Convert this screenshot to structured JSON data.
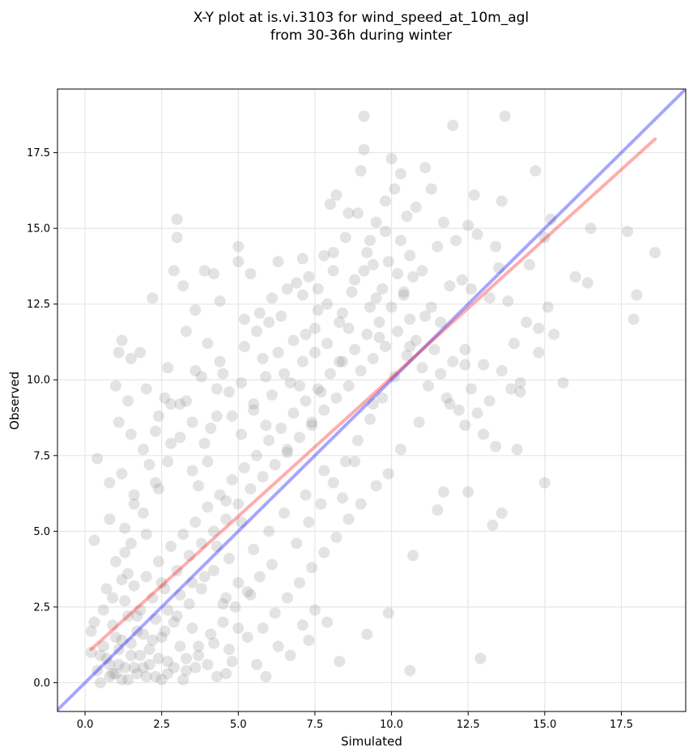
{
  "chart_data": {
    "type": "scatter",
    "title_line1": "X-Y plot at is.vi.3103 for wind_speed_at_10m_agl",
    "title_line2": "from 30-36h during winter",
    "xlabel": "Simulated",
    "ylabel": "Observed",
    "xlim": [
      -0.9,
      19.6
    ],
    "ylim": [
      -0.95,
      19.6
    ],
    "xticks": [
      0.0,
      2.5,
      5.0,
      7.5,
      10.0,
      12.5,
      15.0,
      17.5
    ],
    "yticks": [
      0.0,
      2.5,
      5.0,
      7.5,
      10.0,
      12.5,
      15.0,
      17.5
    ],
    "xtick_labels": [
      "0.0",
      "2.5",
      "5.0",
      "7.5",
      "10.0",
      "12.5",
      "15.0",
      "17.5"
    ],
    "ytick_labels": [
      "0.0",
      "2.5",
      "5.0",
      "7.5",
      "10.0",
      "12.5",
      "15.0",
      "17.5"
    ],
    "grid": true,
    "point_color": "#808080",
    "identity_line": {
      "color": "#0000ff",
      "x": [
        -0.9,
        19.6
      ],
      "y": [
        -0.9,
        19.6
      ]
    },
    "fit_line": {
      "color": "#ff0000",
      "x": [
        0.2,
        18.6
      ],
      "y": [
        1.1,
        17.95
      ]
    },
    "points": [
      [
        0.4,
        7.4
      ],
      [
        0.3,
        4.7
      ],
      [
        0.2,
        1.7
      ],
      [
        0.5,
        0.9
      ],
      [
        0.6,
        2.4
      ],
      [
        0.7,
        3.1
      ],
      [
        0.8,
        5.4
      ],
      [
        0.8,
        6.6
      ],
      [
        0.9,
        2.8
      ],
      [
        1.0,
        0.3
      ],
      [
        1.0,
        9.8
      ],
      [
        1.1,
        8.6
      ],
      [
        1.1,
        10.9
      ],
      [
        1.2,
        11.3
      ],
      [
        1.2,
        6.9
      ],
      [
        1.3,
        4.3
      ],
      [
        1.4,
        3.6
      ],
      [
        1.4,
        9.3
      ],
      [
        1.5,
        10.7
      ],
      [
        1.5,
        8.2
      ],
      [
        1.6,
        5.9
      ],
      [
        1.7,
        2.2
      ],
      [
        1.8,
        10.9
      ],
      [
        1.9,
        7.7
      ],
      [
        2.0,
        9.7
      ],
      [
        2.0,
        4.9
      ],
      [
        2.2,
        12.7
      ],
      [
        2.3,
        8.3
      ],
      [
        2.4,
        6.4
      ],
      [
        2.5,
        3.3
      ],
      [
        2.6,
        9.4
      ],
      [
        2.7,
        10.4
      ],
      [
        2.8,
        7.9
      ],
      [
        2.9,
        13.6
      ],
      [
        3.0,
        15.3
      ],
      [
        3.0,
        14.7
      ],
      [
        3.1,
        9.2
      ],
      [
        3.2,
        13.1
      ],
      [
        3.3,
        11.6
      ],
      [
        3.5,
        8.6
      ],
      [
        3.6,
        12.3
      ],
      [
        3.7,
        6.5
      ],
      [
        3.8,
        10.1
      ],
      [
        3.9,
        13.6
      ],
      [
        4.0,
        7.3
      ],
      [
        4.1,
        8.4
      ],
      [
        4.2,
        13.5
      ],
      [
        4.3,
        9.7
      ],
      [
        4.4,
        12.6
      ],
      [
        4.5,
        10.2
      ],
      [
        4.6,
        6.0
      ],
      [
        4.8,
        8.8
      ],
      [
        5.0,
        14.4
      ],
      [
        5.0,
        13.9
      ],
      [
        5.1,
        9.9
      ],
      [
        5.2,
        11.1
      ],
      [
        5.4,
        13.5
      ],
      [
        5.5,
        9.2
      ],
      [
        5.7,
        12.2
      ],
      [
        5.8,
        10.7
      ],
      [
        5.9,
        8.5
      ],
      [
        6.0,
        11.9
      ],
      [
        6.1,
        9.5
      ],
      [
        6.3,
        13.9
      ],
      [
        6.4,
        12.1
      ],
      [
        6.5,
        10.2
      ],
      [
        6.6,
        7.7
      ],
      [
        6.8,
        11.3
      ],
      [
        6.9,
        13.2
      ],
      [
        7.0,
        9.8
      ],
      [
        7.1,
        12.8
      ],
      [
        7.2,
        11.5
      ],
      [
        7.3,
        13.4
      ],
      [
        7.4,
        8.6
      ],
      [
        7.5,
        10.9
      ],
      [
        7.6,
        12.3
      ],
      [
        7.7,
        9.6
      ],
      [
        7.8,
        14.1
      ],
      [
        7.9,
        11.2
      ],
      [
        8.0,
        15.8
      ],
      [
        8.1,
        13.6
      ],
      [
        8.2,
        16.1
      ],
      [
        8.3,
        10.6
      ],
      [
        8.4,
        12.2
      ],
      [
        8.5,
        14.7
      ],
      [
        8.6,
        11.7
      ],
      [
        8.8,
        13.3
      ],
      [
        8.9,
        15.5
      ],
      [
        9.0,
        16.9
      ],
      [
        9.1,
        18.7
      ],
      [
        9.1,
        17.6
      ],
      [
        9.2,
        14.2
      ],
      [
        9.3,
        12.4
      ],
      [
        9.4,
        13.8
      ],
      [
        9.5,
        15.2
      ],
      [
        9.6,
        11.4
      ],
      [
        9.7,
        13.0
      ],
      [
        9.8,
        14.9
      ],
      [
        10.0,
        17.3
      ],
      [
        10.1,
        16.3
      ],
      [
        10.2,
        13.5
      ],
      [
        10.3,
        16.8
      ],
      [
        10.4,
        12.9
      ],
      [
        10.5,
        15.4
      ],
      [
        10.6,
        14.1
      ],
      [
        10.8,
        15.7
      ],
      [
        11.0,
        13.6
      ],
      [
        11.1,
        17.0
      ],
      [
        11.3,
        12.4
      ],
      [
        11.5,
        14.4
      ],
      [
        11.7,
        15.2
      ],
      [
        11.9,
        13.1
      ],
      [
        12.0,
        18.4
      ],
      [
        12.1,
        14.6
      ],
      [
        12.4,
        11.0
      ],
      [
        12.5,
        15.1
      ],
      [
        12.6,
        13.0
      ],
      [
        12.8,
        14.8
      ],
      [
        13.0,
        10.5
      ],
      [
        13.2,
        12.7
      ],
      [
        13.5,
        13.7
      ],
      [
        13.6,
        15.9
      ],
      [
        13.7,
        18.7
      ],
      [
        13.8,
        12.6
      ],
      [
        14.0,
        11.2
      ],
      [
        14.2,
        9.6
      ],
      [
        14.5,
        13.8
      ],
      [
        14.7,
        16.9
      ],
      [
        14.8,
        10.9
      ],
      [
        15.0,
        14.7
      ],
      [
        15.1,
        12.4
      ],
      [
        15.2,
        15.3
      ],
      [
        15.3,
        11.5
      ],
      [
        15.6,
        9.9
      ],
      [
        16.0,
        13.4
      ],
      [
        16.4,
        13.2
      ],
      [
        16.5,
        15.0
      ],
      [
        17.7,
        14.9
      ],
      [
        17.9,
        12.0
      ],
      [
        18.0,
        12.8
      ],
      [
        18.6,
        14.2
      ],
      [
        14.1,
        7.7
      ],
      [
        13.6,
        5.6
      ],
      [
        13.3,
        5.2
      ],
      [
        12.9,
        0.8
      ],
      [
        12.5,
        6.3
      ],
      [
        11.7,
        6.3
      ],
      [
        11.5,
        5.7
      ],
      [
        10.7,
        4.2
      ],
      [
        10.6,
        0.4
      ],
      [
        9.9,
        2.3
      ],
      [
        9.2,
        1.6
      ],
      [
        8.3,
        0.7
      ],
      [
        7.9,
        2.0
      ],
      [
        7.5,
        2.4
      ],
      [
        7.3,
        1.4
      ],
      [
        7.1,
        1.9
      ],
      [
        6.7,
        0.9
      ],
      [
        6.3,
        1.2
      ],
      [
        5.9,
        0.2
      ],
      [
        5.6,
        0.6
      ],
      [
        5.3,
        1.5
      ],
      [
        5.0,
        1.8
      ],
      [
        4.7,
        1.1
      ],
      [
        4.5,
        2.6
      ],
      [
        4.6,
        0.3
      ],
      [
        4.2,
        1.3
      ],
      [
        4.0,
        0.6
      ],
      [
        3.7,
        0.9
      ],
      [
        3.5,
        1.8
      ],
      [
        3.3,
        0.4
      ],
      [
        3.1,
        1.2
      ],
      [
        2.9,
        2.0
      ],
      [
        2.7,
        0.7
      ],
      [
        2.5,
        1.5
      ],
      [
        2.3,
        0.2
      ],
      [
        2.1,
        1.1
      ],
      [
        1.9,
        0.5
      ],
      [
        1.7,
        1.7
      ],
      [
        1.5,
        0.9
      ],
      [
        1.4,
        0.1
      ],
      [
        1.2,
        1.4
      ],
      [
        1.1,
        0.6
      ],
      [
        0.9,
        1.9
      ],
      [
        0.8,
        0.2
      ],
      [
        0.6,
        1.2
      ],
      [
        0.4,
        0.4
      ],
      [
        0.3,
        2.0
      ],
      [
        0.2,
        1.0
      ],
      [
        1.3,
        2.7
      ],
      [
        1.6,
        3.2
      ],
      [
        1.8,
        2.4
      ],
      [
        2.0,
        3.5
      ],
      [
        2.2,
        2.8
      ],
      [
        2.4,
        4.0
      ],
      [
        2.6,
        3.1
      ],
      [
        2.8,
        4.5
      ],
      [
        3.0,
        3.7
      ],
      [
        3.2,
        4.9
      ],
      [
        3.4,
        4.2
      ],
      [
        3.6,
        5.3
      ],
      [
        3.8,
        4.6
      ],
      [
        4.0,
        5.8
      ],
      [
        4.2,
        5.0
      ],
      [
        4.4,
        6.2
      ],
      [
        4.6,
        5.4
      ],
      [
        4.8,
        6.7
      ],
      [
        5.0,
        5.9
      ],
      [
        5.2,
        7.1
      ],
      [
        5.4,
        6.4
      ],
      [
        5.6,
        7.5
      ],
      [
        5.8,
        6.8
      ],
      [
        6.0,
        8.0
      ],
      [
        6.2,
        7.2
      ],
      [
        6.4,
        8.4
      ],
      [
        6.6,
        7.6
      ],
      [
        6.8,
        8.9
      ],
      [
        7.0,
        8.1
      ],
      [
        7.2,
        9.3
      ],
      [
        7.4,
        8.5
      ],
      [
        7.6,
        9.7
      ],
      [
        7.8,
        9.0
      ],
      [
        8.0,
        10.2
      ],
      [
        8.2,
        9.4
      ],
      [
        8.4,
        10.6
      ],
      [
        8.6,
        9.8
      ],
      [
        8.8,
        11.0
      ],
      [
        9.0,
        10.3
      ],
      [
        9.2,
        11.5
      ],
      [
        9.4,
        10.7
      ],
      [
        9.6,
        11.9
      ],
      [
        9.8,
        11.1
      ],
      [
        10.0,
        12.4
      ],
      [
        10.2,
        11.6
      ],
      [
        10.4,
        12.8
      ],
      [
        10.6,
        12.0
      ],
      [
        10.8,
        11.3
      ],
      [
        11.0,
        10.4
      ],
      [
        11.2,
        9.8
      ],
      [
        11.4,
        11.0
      ],
      [
        11.6,
        10.2
      ],
      [
        11.8,
        9.4
      ],
      [
        12.0,
        10.6
      ],
      [
        12.2,
        9.0
      ],
      [
        12.4,
        8.5
      ],
      [
        12.6,
        9.7
      ],
      [
        12.8,
        8.9
      ],
      [
        13.0,
        8.2
      ],
      [
        13.2,
        9.3
      ],
      [
        13.4,
        7.8
      ],
      [
        13.6,
        10.3
      ],
      [
        13.9,
        9.7
      ],
      [
        14.2,
        9.9
      ],
      [
        14.4,
        11.9
      ],
      [
        14.8,
        11.7
      ],
      [
        15.0,
        6.6
      ],
      [
        12.4,
        10.5
      ],
      [
        11.9,
        9.2
      ],
      [
        10.9,
        8.6
      ],
      [
        10.3,
        7.7
      ],
      [
        9.9,
        6.9
      ],
      [
        9.5,
        6.5
      ],
      [
        9.0,
        5.9
      ],
      [
        8.6,
        5.4
      ],
      [
        8.2,
        4.8
      ],
      [
        7.8,
        4.3
      ],
      [
        7.4,
        3.8
      ],
      [
        7.0,
        3.3
      ],
      [
        6.6,
        2.8
      ],
      [
        6.2,
        2.3
      ],
      [
        5.8,
        1.8
      ],
      [
        5.4,
        2.9
      ],
      [
        5.0,
        3.3
      ],
      [
        4.6,
        2.8
      ],
      [
        4.2,
        3.7
      ],
      [
        3.8,
        3.1
      ],
      [
        3.4,
        2.6
      ],
      [
        3.0,
        2.2
      ],
      [
        2.6,
        1.7
      ],
      [
        2.2,
        1.4
      ],
      [
        1.8,
        0.9
      ],
      [
        1.4,
        2.2
      ],
      [
        1.0,
        1.5
      ],
      [
        0.7,
        0.8
      ],
      [
        1.2,
        3.4
      ],
      [
        1.5,
        4.6
      ],
      [
        1.9,
        5.6
      ],
      [
        2.3,
        6.6
      ],
      [
        2.7,
        7.3
      ],
      [
        3.1,
        8.1
      ],
      [
        3.5,
        7.0
      ],
      [
        3.9,
        7.9
      ],
      [
        4.3,
        8.8
      ],
      [
        4.7,
        9.6
      ],
      [
        5.1,
        8.2
      ],
      [
        5.5,
        9.0
      ],
      [
        5.9,
        10.1
      ],
      [
        6.3,
        10.9
      ],
      [
        6.7,
        9.9
      ],
      [
        7.1,
        10.6
      ],
      [
        7.5,
        11.7
      ],
      [
        7.9,
        12.5
      ],
      [
        8.3,
        11.9
      ],
      [
        8.7,
        12.9
      ],
      [
        9.1,
        13.6
      ],
      [
        9.5,
        12.7
      ],
      [
        9.9,
        13.9
      ],
      [
        10.3,
        14.6
      ],
      [
        10.7,
        13.4
      ],
      [
        11.1,
        12.1
      ],
      [
        6.9,
        4.6
      ],
      [
        7.3,
        5.3
      ],
      [
        7.7,
        5.9
      ],
      [
        8.1,
        6.6
      ],
      [
        8.5,
        7.3
      ],
      [
        8.9,
        8.0
      ],
      [
        9.3,
        8.7
      ],
      [
        9.7,
        9.4
      ],
      [
        10.1,
        10.1
      ],
      [
        10.5,
        10.8
      ],
      [
        6.1,
        3.9
      ],
      [
        5.7,
        3.5
      ],
      [
        5.3,
        3.0
      ],
      [
        4.9,
        2.5
      ],
      [
        4.5,
        2.0
      ],
      [
        4.1,
        1.6
      ],
      [
        3.7,
        1.2
      ],
      [
        3.3,
        0.8
      ],
      [
        2.9,
        0.5
      ],
      [
        2.5,
        0.1
      ],
      [
        0.5,
        0.0
      ],
      [
        0.9,
        0.3
      ],
      [
        1.3,
        0.5
      ],
      [
        1.7,
        0.3
      ],
      [
        2.1,
        0.6
      ],
      [
        2.7,
        0.3
      ],
      [
        3.2,
        0.1
      ],
      [
        3.6,
        0.5
      ],
      [
        4.3,
        0.2
      ],
      [
        4.8,
        0.7
      ],
      [
        1.0,
        4.0
      ],
      [
        1.3,
        5.1
      ],
      [
        1.6,
        6.2
      ],
      [
        2.1,
        7.2
      ],
      [
        2.4,
        8.8
      ],
      [
        2.8,
        9.2
      ],
      [
        3.3,
        9.3
      ],
      [
        3.6,
        10.3
      ],
      [
        4.0,
        11.2
      ],
      [
        4.4,
        10.6
      ],
      [
        5.2,
        12.0
      ],
      [
        5.6,
        11.6
      ],
      [
        6.1,
        12.7
      ],
      [
        6.6,
        13.0
      ],
      [
        7.1,
        14.0
      ],
      [
        7.6,
        13.0
      ],
      [
        8.1,
        14.2
      ],
      [
        8.6,
        15.5
      ],
      [
        9.3,
        14.6
      ],
      [
        9.8,
        15.9
      ],
      [
        11.3,
        16.3
      ],
      [
        12.7,
        16.1
      ],
      [
        13.4,
        14.4
      ],
      [
        12.3,
        13.3
      ],
      [
        11.6,
        11.9
      ],
      [
        10.6,
        11.1
      ],
      [
        9.4,
        9.2
      ],
      [
        8.8,
        7.3
      ],
      [
        8.4,
        6.1
      ],
      [
        7.8,
        7.0
      ],
      [
        7.2,
        6.2
      ],
      [
        6.5,
        5.6
      ],
      [
        6.0,
        5.0
      ],
      [
        5.5,
        4.4
      ],
      [
        5.1,
        5.3
      ],
      [
        4.7,
        4.1
      ],
      [
        4.3,
        4.5
      ],
      [
        3.9,
        3.5
      ],
      [
        3.5,
        3.3
      ],
      [
        3.1,
        2.9
      ],
      [
        2.7,
        2.4
      ],
      [
        2.3,
        2.1
      ],
      [
        1.9,
        1.6
      ],
      [
        1.5,
        1.3
      ],
      [
        1.1,
        1.1
      ],
      [
        0.8,
        0.6
      ],
      [
        1.2,
        0.1
      ],
      [
        1.6,
        0.5
      ],
      [
        2.0,
        0.2
      ],
      [
        2.4,
        0.8
      ]
    ]
  }
}
